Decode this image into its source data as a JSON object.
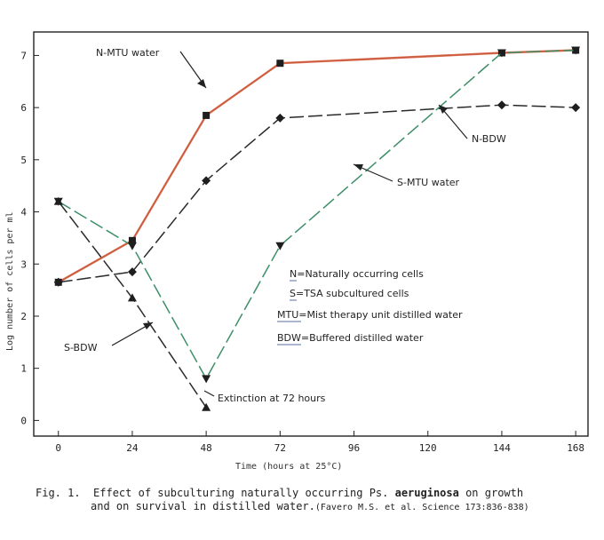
{
  "chart_data": {
    "type": "line",
    "xlabel": "Time (hours at 25°C)",
    "ylabel": "Log number of cells per ml",
    "xlim": [
      -8,
      172
    ],
    "ylim": [
      -0.3,
      7.45
    ],
    "x_ticks": [
      0,
      24,
      48,
      72,
      96,
      120,
      144,
      168
    ],
    "y_ticks": [
      0,
      1,
      2,
      3,
      4,
      5,
      6,
      7
    ],
    "grid": false,
    "series": [
      {
        "name": "N-MTU water",
        "color": "#d9603f",
        "dash": "solid",
        "marker": "square",
        "x": [
          0,
          24,
          48,
          72,
          144,
          168
        ],
        "y": [
          2.65,
          3.45,
          5.85,
          6.85,
          7.05,
          7.1
        ]
      },
      {
        "name": "N-BDW",
        "color": "#2a2a2a",
        "dash": "long",
        "marker": "diamond",
        "x": [
          0,
          24,
          48,
          72,
          144,
          168
        ],
        "y": [
          2.65,
          2.85,
          4.6,
          5.8,
          6.05,
          6.0
        ]
      },
      {
        "name": "S-MTU water",
        "color": "#3d8f68",
        "dash": "long",
        "marker": "triangle-down",
        "x": [
          0,
          24,
          48,
          72,
          144,
          168
        ],
        "y": [
          4.2,
          3.35,
          0.8,
          3.35,
          7.05,
          7.1
        ]
      },
      {
        "name": "S-BDW",
        "color": "#2a2a2a",
        "dash": "long",
        "marker": "triangle-up",
        "x": [
          0,
          24,
          48
        ],
        "y": [
          4.2,
          2.35,
          0.25
        ]
      }
    ],
    "annotations": [
      {
        "id": "n-mtu",
        "text": "N-MTU water"
      },
      {
        "id": "n-bdw",
        "text": "N-BDW"
      },
      {
        "id": "s-mtu",
        "text": "S-MTU water"
      },
      {
        "id": "s-bdw",
        "text": "S-BDW"
      },
      {
        "id": "extinction",
        "text": "Extinction at 72 hours"
      }
    ],
    "legend": {
      "placement": "center-right",
      "items": [
        {
          "key": "N",
          "text": "N=Naturally occurring cells"
        },
        {
          "key": "S",
          "text": "S=TSA subcultured cells"
        },
        {
          "key": "MTU",
          "text": "MTU=Mist therapy unit distilled water"
        },
        {
          "key": "BDW",
          "text": "BDW=Buffered distilled water"
        }
      ]
    }
  },
  "caption": {
    "label": "Fig. 1.",
    "text_part1": "Effect of subculturing naturally occurring Ps. ",
    "organism": "aeruginosa",
    "text_part2": " on growth",
    "line2": "and on survival in distilled water.",
    "citation": "(Favero M.S. et al. Science 173:836-838)"
  }
}
